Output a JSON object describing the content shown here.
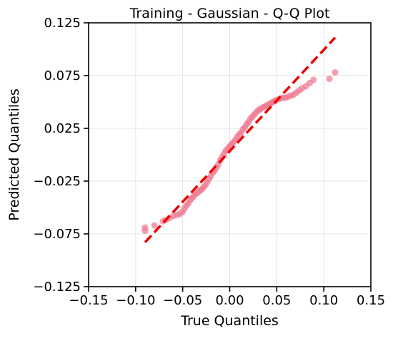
{
  "chart_data": {
    "type": "scatter",
    "title": "Training - Gaussian - Q-Q Plot",
    "xlabel": "True Quantiles",
    "ylabel": "Predicted Quantiles",
    "xlim": [
      -0.15,
      0.15
    ],
    "ylim": [
      -0.125,
      0.125
    ],
    "xticks": [
      -0.15,
      -0.1,
      -0.05,
      0.0,
      0.05,
      0.1,
      0.15
    ],
    "xtick_labels": [
      "−0.15",
      "−0.10",
      "−0.05",
      "0.00",
      "0.05",
      "0.10",
      "0.15"
    ],
    "yticks": [
      -0.125,
      -0.075,
      -0.025,
      0.025,
      0.075,
      0.125
    ],
    "ytick_labels": [
      "−0.125",
      "−0.075",
      "−0.025",
      "0.025",
      "0.075",
      "0.125"
    ],
    "grid": true,
    "point_color": "#f07890",
    "line_color": "#ee0000",
    "reference_line": {
      "x": [
        -0.09,
        0.112
      ],
      "y": [
        -0.083,
        0.111
      ]
    },
    "points": [
      [
        -0.09,
        -0.069
      ],
      [
        -0.09,
        -0.072
      ],
      [
        -0.08,
        -0.067
      ],
      [
        -0.071,
        -0.063
      ],
      [
        -0.068,
        -0.062
      ],
      [
        -0.064,
        -0.06
      ],
      [
        -0.06,
        -0.058
      ],
      [
        -0.056,
        -0.057
      ],
      [
        -0.053,
        -0.056
      ],
      [
        -0.05,
        -0.054
      ],
      [
        -0.048,
        -0.051
      ],
      [
        -0.046,
        -0.048
      ],
      [
        -0.044,
        -0.046
      ],
      [
        -0.042,
        -0.043
      ],
      [
        -0.04,
        -0.041
      ],
      [
        -0.038,
        -0.039
      ],
      [
        -0.036,
        -0.037
      ],
      [
        -0.034,
        -0.036
      ],
      [
        -0.032,
        -0.034
      ],
      [
        -0.03,
        -0.033
      ],
      [
        -0.028,
        -0.031
      ],
      [
        -0.026,
        -0.029
      ],
      [
        -0.024,
        -0.026
      ],
      [
        -0.022,
        -0.023
      ],
      [
        -0.02,
        -0.02
      ],
      [
        -0.018,
        -0.017
      ],
      [
        -0.016,
        -0.015
      ],
      [
        -0.014,
        -0.012
      ],
      [
        -0.012,
        -0.009
      ],
      [
        -0.01,
        -0.005
      ],
      [
        -0.008,
        -0.002
      ],
      [
        -0.006,
        0.001
      ],
      [
        -0.004,
        0.004
      ],
      [
        -0.002,
        0.006
      ],
      [
        0.0,
        0.008
      ],
      [
        0.002,
        0.01
      ],
      [
        0.004,
        0.012
      ],
      [
        0.006,
        0.014
      ],
      [
        0.008,
        0.017
      ],
      [
        0.01,
        0.019
      ],
      [
        0.012,
        0.021
      ],
      [
        0.014,
        0.024
      ],
      [
        0.016,
        0.026
      ],
      [
        0.018,
        0.029
      ],
      [
        0.02,
        0.031
      ],
      [
        0.022,
        0.034
      ],
      [
        0.024,
        0.036
      ],
      [
        0.026,
        0.038
      ],
      [
        0.028,
        0.04
      ],
      [
        0.03,
        0.042
      ],
      [
        0.032,
        0.043
      ],
      [
        0.034,
        0.044
      ],
      [
        0.036,
        0.045
      ],
      [
        0.038,
        0.046
      ],
      [
        0.04,
        0.047
      ],
      [
        0.042,
        0.048
      ],
      [
        0.044,
        0.049
      ],
      [
        0.046,
        0.05
      ],
      [
        0.048,
        0.051
      ],
      [
        0.05,
        0.052
      ],
      [
        0.053,
        0.053
      ],
      [
        0.056,
        0.054
      ],
      [
        0.059,
        0.054
      ],
      [
        0.062,
        0.055
      ],
      [
        0.065,
        0.056
      ],
      [
        0.068,
        0.057
      ],
      [
        0.071,
        0.059
      ],
      [
        0.074,
        0.061
      ],
      [
        0.077,
        0.063
      ],
      [
        0.081,
        0.065
      ],
      [
        0.085,
        0.068
      ],
      [
        0.089,
        0.071
      ],
      [
        0.106,
        0.072
      ],
      [
        0.112,
        0.078
      ]
    ]
  }
}
